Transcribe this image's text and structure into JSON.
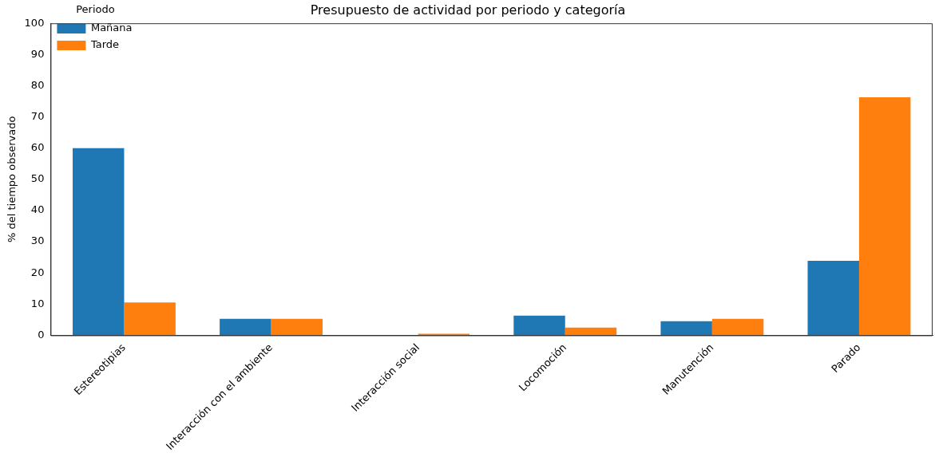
{
  "chart_data": {
    "type": "bar",
    "title": "Presupuesto de actividad por periodo y categoría",
    "xlabel": null,
    "ylabel": "% del tiempo observado",
    "categories": [
      "Estereotipias",
      "Interacción con el ambiente",
      "Interacción social",
      "Locomoción",
      "Manutención",
      "Parado"
    ],
    "series": [
      {
        "name": "Mañana",
        "color": "#1f77b4",
        "values": [
          60,
          5.3,
          0,
          6.3,
          4.5,
          23.9
        ]
      },
      {
        "name": "Tarde",
        "color": "#ff7f0e",
        "values": [
          10.5,
          5.3,
          0.5,
          2.5,
          5.3,
          76.3
        ]
      }
    ],
    "ylim": [
      0,
      100
    ],
    "yticks": [
      0,
      10,
      20,
      30,
      40,
      50,
      60,
      70,
      80,
      90,
      100
    ],
    "grid": false,
    "legend": "top left",
    "legend_title": "Periodo"
  }
}
